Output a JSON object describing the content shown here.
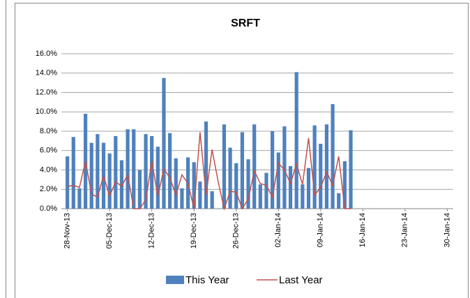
{
  "chart_data": {
    "type": "bar-line",
    "title": "SRFT",
    "x": [
      "28-Nov-13",
      "29-Nov-13",
      "30-Nov-13",
      "01-Dec-13",
      "02-Dec-13",
      "03-Dec-13",
      "04-Dec-13",
      "05-Dec-13",
      "06-Dec-13",
      "07-Dec-13",
      "08-Dec-13",
      "09-Dec-13",
      "10-Dec-13",
      "11-Dec-13",
      "12-Dec-13",
      "13-Dec-13",
      "14-Dec-13",
      "15-Dec-13",
      "16-Dec-13",
      "17-Dec-13",
      "18-Dec-13",
      "19-Dec-13",
      "20-Dec-13",
      "21-Dec-13",
      "22-Dec-13",
      "23-Dec-13",
      "24-Dec-13",
      "25-Dec-13",
      "26-Dec-13",
      "27-Dec-13",
      "28-Dec-13",
      "29-Dec-13",
      "30-Dec-13",
      "31-Dec-13",
      "01-Jan-14",
      "02-Jan-14",
      "03-Jan-14",
      "04-Jan-14",
      "05-Jan-14",
      "06-Jan-14",
      "07-Jan-14",
      "08-Jan-14",
      "09-Jan-14",
      "10-Jan-14",
      "11-Jan-14",
      "12-Jan-14",
      "13-Jan-14",
      "14-Jan-14"
    ],
    "series": [
      {
        "name": "This Year",
        "kind": "bar",
        "color": "#4f81bd",
        "values": [
          5.4,
          7.4,
          2.1,
          9.8,
          6.8,
          7.7,
          6.8,
          5.7,
          7.5,
          5.0,
          8.2,
          8.2,
          4.0,
          7.7,
          7.5,
          6.4,
          13.5,
          7.8,
          5.2,
          2.1,
          5.3,
          4.8,
          2.8,
          9.0,
          1.8,
          0,
          8.7,
          6.3,
          4.7,
          7.9,
          5.1,
          8.7,
          2.5,
          3.7,
          8.0,
          5.8,
          8.5,
          4.4,
          14.1,
          2.5,
          4.2,
          8.6,
          6.7,
          8.7,
          10.8,
          1.6,
          4.9,
          8.1
        ]
      },
      {
        "name": "Last Year",
        "kind": "line",
        "color": "#c0504d",
        "values": [
          2.3,
          2.4,
          2.2,
          4.9,
          1.5,
          1.2,
          3.4,
          1.3,
          2.8,
          2.3,
          3.5,
          0,
          0,
          0.9,
          4.9,
          1.3,
          4.1,
          3.2,
          1.4,
          3.5,
          2.6,
          0,
          7.9,
          1.4,
          6.1,
          2.8,
          0,
          1.8,
          1.7,
          0,
          1.0,
          3.9,
          2.6,
          2.4,
          1.2,
          4.7,
          4.0,
          2.6,
          4.6,
          2.5,
          7.3,
          1.4,
          2.2,
          3.8,
          2.4,
          5.4,
          0,
          0
        ]
      }
    ],
    "xlim": [
      "27-Nov-13",
      "31-Jan-14"
    ],
    "xticks": [
      "28-Nov-13",
      "05-Dec-13",
      "12-Dec-13",
      "19-Dec-13",
      "26-Dec-13",
      "02-Jan-14",
      "09-Jan-14",
      "16-Jan-14",
      "23-Jan-14",
      "30-Jan-14"
    ],
    "ylim": [
      0,
      16
    ],
    "yticks": [
      {
        "value": 0,
        "label": "0.0%"
      },
      {
        "value": 2,
        "label": "2.0%"
      },
      {
        "value": 4,
        "label": "4.0%"
      },
      {
        "value": 6,
        "label": "6.0%"
      },
      {
        "value": 8,
        "label": "8.0%"
      },
      {
        "value": 10,
        "label": "10.0%"
      },
      {
        "value": 12,
        "label": "12.0%"
      },
      {
        "value": 14,
        "label": "14.0%"
      },
      {
        "value": 16,
        "label": "16.0%"
      }
    ],
    "grid": true,
    "legend": "bottom"
  }
}
